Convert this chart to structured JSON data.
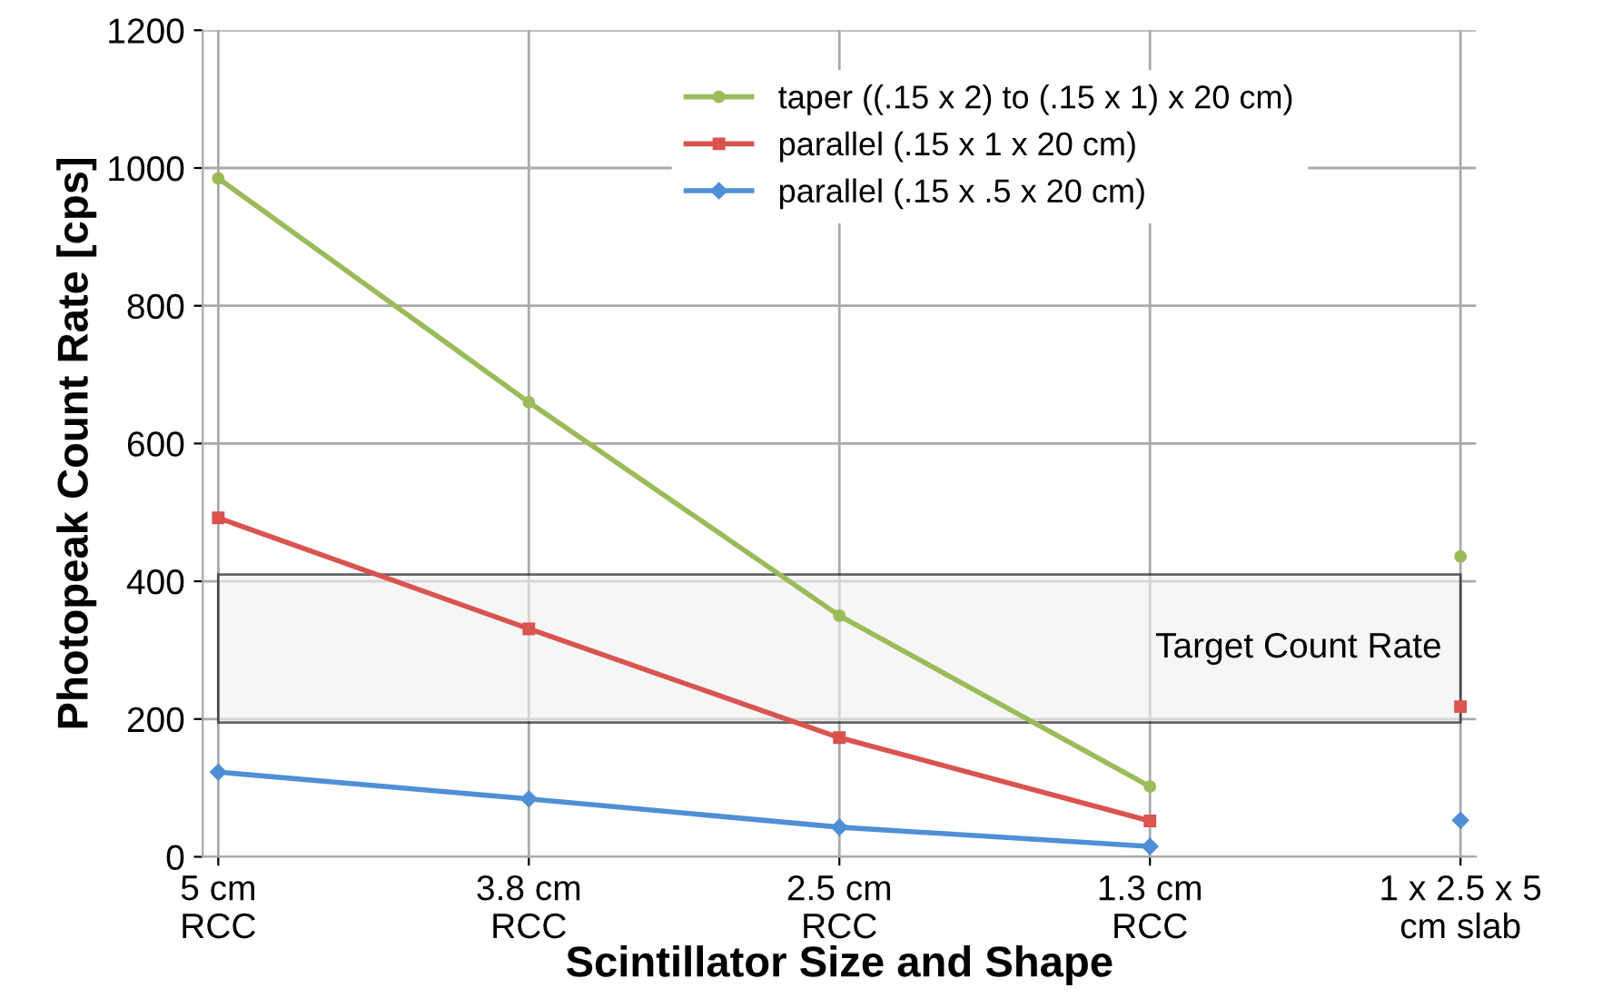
{
  "chart_data": {
    "type": "line",
    "xlabel": "Scintillator Size and Shape",
    "ylabel": "Photopeak Count Rate [cps]",
    "categories": [
      "5 cm\nRCC",
      "3.8 cm\nRCC",
      "2.5 cm\nRCC",
      "1.3 cm\nRCC",
      "1 x 2.5 x 5\ncm slab"
    ],
    "series": [
      {
        "name": "taper ((.15 x 2) to (.15 x 1) x 20 cm)",
        "color": "#9bbb59",
        "marker": "circle",
        "values": [
          985,
          660,
          350,
          102,
          null
        ]
      },
      {
        "name": "parallel (.15 x 1 x 20 cm)",
        "color": "#d9534f",
        "marker": "square",
        "values": [
          492,
          331,
          173,
          52,
          null
        ]
      },
      {
        "name": "parallel (.15 x .5 x 20 cm)",
        "color": "#4f8fd6",
        "marker": "diamond",
        "values": [
          123,
          84,
          43,
          15,
          null
        ]
      },
      {
        "type": "scatter",
        "color": "#9bbb59",
        "marker": "circle",
        "x": [
          "1 x 2.5 x 5\ncm slab"
        ],
        "values": [
          436
        ]
      },
      {
        "type": "scatter",
        "color": "#d9534f",
        "marker": "square",
        "x": [
          "1 x 2.5 x 5\ncm slab"
        ],
        "values": [
          218
        ]
      },
      {
        "type": "scatter",
        "color": "#4f8fd6",
        "marker": "diamond",
        "x": [
          "1 x 2.5 x 5\ncm slab"
        ],
        "values": [
          53
        ]
      }
    ],
    "bands": [
      {
        "axis": "y",
        "from": 195,
        "to": 410,
        "label": "Target Count Rate",
        "color": "#f0f0f0"
      }
    ],
    "ylim": [
      0,
      1200
    ],
    "yticks": [
      0,
      200,
      400,
      600,
      800,
      1000,
      1200
    ],
    "grid": true,
    "legend": "top right"
  }
}
